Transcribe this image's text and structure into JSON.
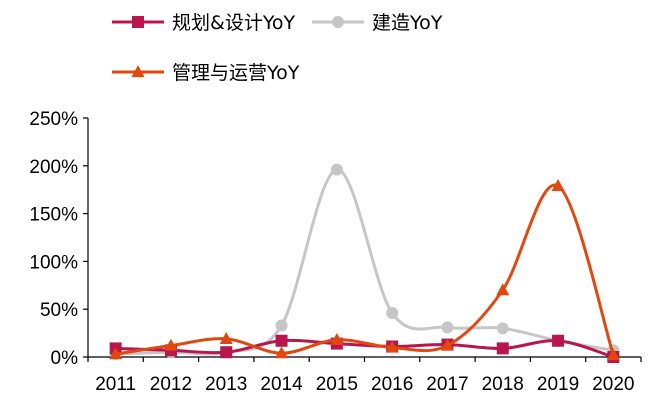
{
  "chart_data": {
    "type": "line",
    "title": "",
    "xlabel": "",
    "ylabel": "",
    "categories": [
      "2011",
      "2012",
      "2013",
      "2014",
      "2015",
      "2016",
      "2017",
      "2018",
      "2019",
      "2020"
    ],
    "ylim": [
      0,
      2.5
    ],
    "yticks": [
      0,
      0.5,
      1.0,
      1.5,
      2.0,
      2.5
    ],
    "ytick_labels": [
      "0%",
      "50%",
      "100%",
      "150%",
      "200%",
      "250%"
    ],
    "grid": false,
    "legend_position": "top",
    "series": [
      {
        "name": "规划&设计YoY",
        "color": "#B8174E",
        "marker": "square",
        "values": [
          0.09,
          0.07,
          0.05,
          0.17,
          0.14,
          0.11,
          0.13,
          0.09,
          0.17,
          0.0
        ]
      },
      {
        "name": "建造YoY",
        "color": "#C6C6C6",
        "marker": "circle",
        "values": [
          0.03,
          0.05,
          0.05,
          0.33,
          1.96,
          0.46,
          0.31,
          0.3,
          0.17,
          0.07
        ]
      },
      {
        "name": "管理与运营YoY",
        "color": "#E2470F",
        "marker": "triangle",
        "values": [
          0.03,
          0.12,
          0.19,
          0.04,
          0.18,
          0.1,
          0.12,
          0.7,
          1.79,
          0.02
        ]
      }
    ]
  }
}
